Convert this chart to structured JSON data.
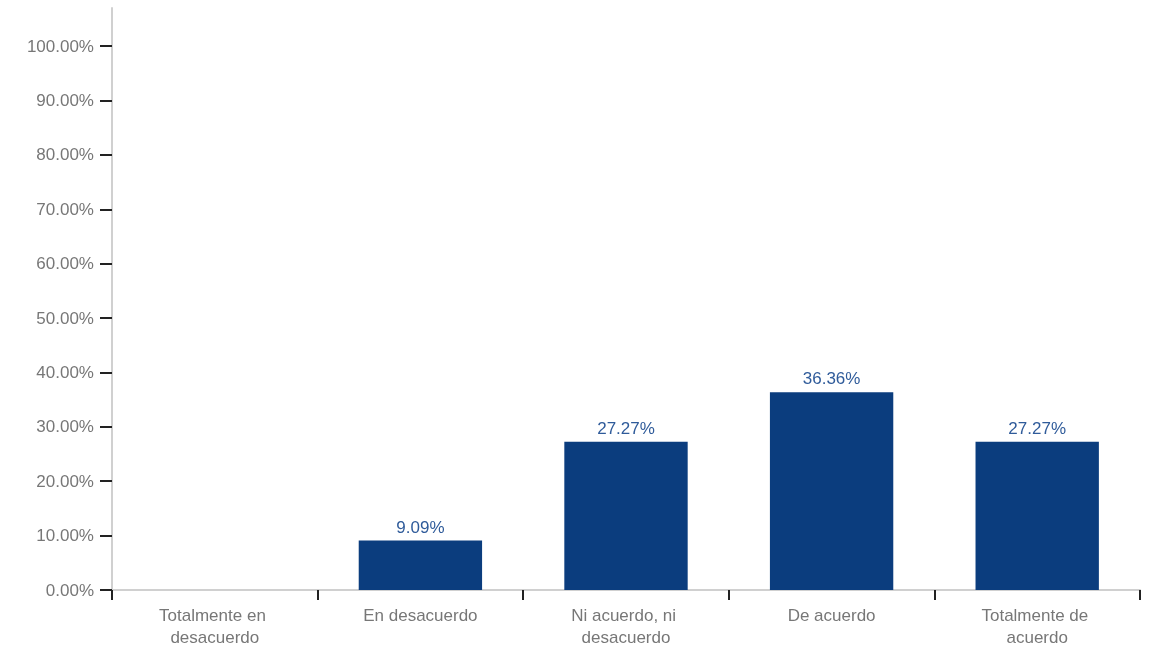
{
  "chart_data": {
    "type": "bar",
    "categories": [
      "Totalmente en desacuerdo",
      "En desacuerdo",
      "Ni acuerdo, ni desacuerdo",
      "De acuerdo",
      "Totalmente de acuerdo"
    ],
    "values": [
      0,
      9.09,
      27.27,
      36.36,
      27.27
    ],
    "value_labels": [
      null,
      "9.09%",
      "27.27%",
      "36.36%",
      "27.27%"
    ],
    "color": "#0b3d7e",
    "ylim": [
      0,
      107
    ],
    "yticks": [
      {
        "value": 0,
        "label": "0.00%"
      },
      {
        "value": 10,
        "label": "10.00%"
      },
      {
        "value": 20,
        "label": "20.00%"
      },
      {
        "value": 30,
        "label": "30.00%"
      },
      {
        "value": 40,
        "label": "40.00%"
      },
      {
        "value": 50,
        "label": "50.00%"
      },
      {
        "value": 60,
        "label": "60.00%"
      },
      {
        "value": 70,
        "label": "70.00%"
      },
      {
        "value": 80,
        "label": "80.00%"
      },
      {
        "value": 90,
        "label": "90.00%"
      },
      {
        "value": 100,
        "label": "100.00%"
      }
    ],
    "grid": false
  }
}
